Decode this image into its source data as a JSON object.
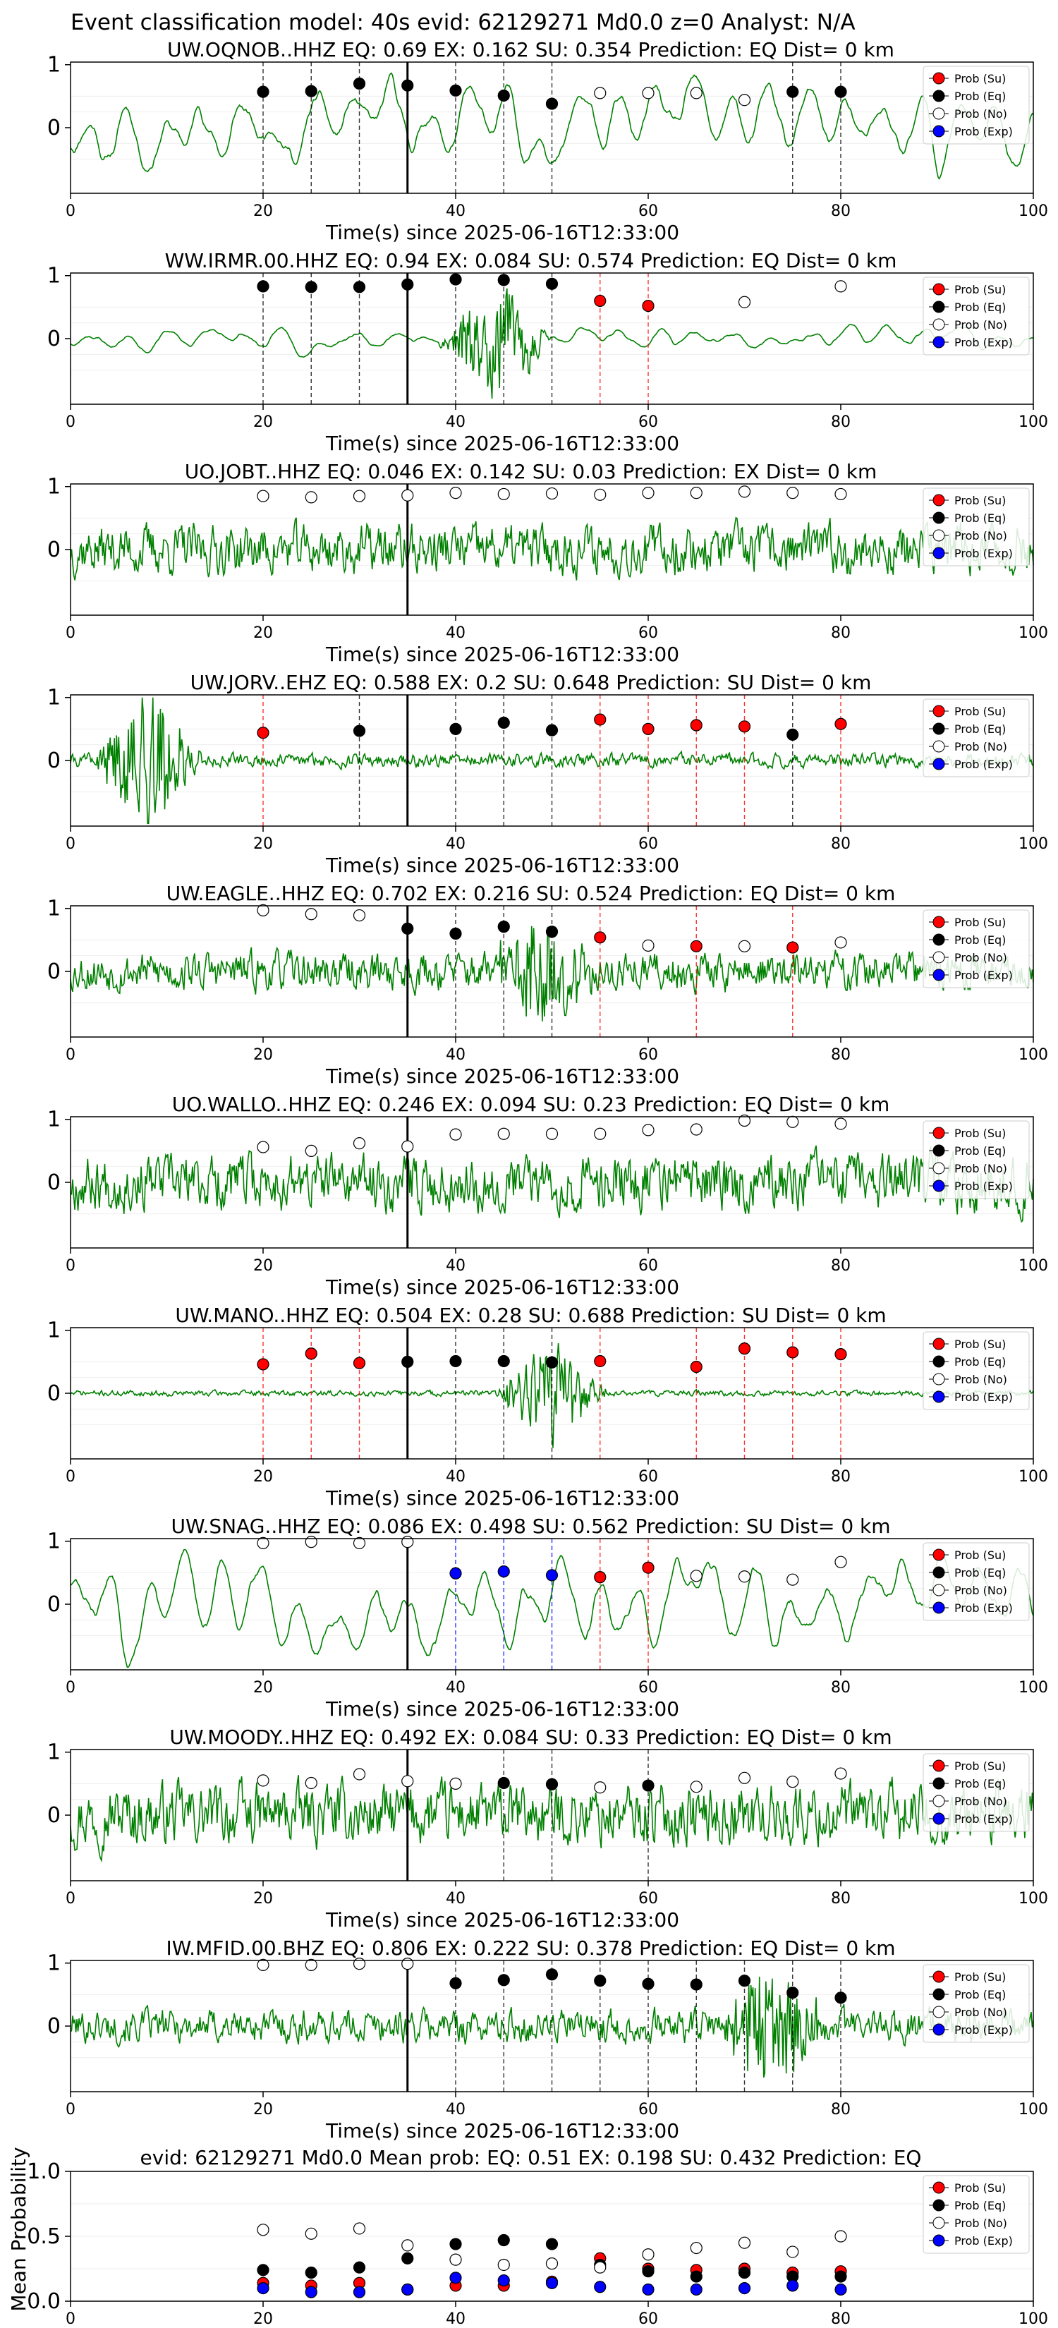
{
  "figure_title": "Event classification model: 40s evid: 62129271 Md0.0 z=0 Analyst: N/A",
  "legend_labels": [
    "Prob (Su)",
    "Prob (Eq)",
    "Prob (No)",
    "Prob (Exp)"
  ],
  "colors": {
    "su": "#ff0000",
    "eq": "#000000",
    "no": "#ffffff",
    "exp": "#0000ff",
    "trace": "#008000"
  },
  "chart_data": [
    {
      "type": "scatter",
      "trace_type": "line",
      "title": "UW.OQNOB..HHZ   EQ: 0.69   EX: 0.162   SU: 0.354   Prediction: EQ    Dist= 0 km",
      "xlabel": "Time(s) since 2025-06-16T12:33:00",
      "xlim": [
        0,
        100
      ],
      "ylim": [
        -1,
        1
      ],
      "x_ticks": [
        "0",
        "20",
        "40",
        "60",
        "80",
        "100"
      ],
      "y_ticks": [
        "1",
        "0"
      ],
      "trace_style": "smooth",
      "trace_amp": 0.6,
      "trace_seed": 11,
      "window_starts": [
        20,
        25,
        30,
        35,
        40,
        45,
        50,
        55,
        60,
        65,
        70,
        75,
        80
      ],
      "window_class": [
        "eq",
        "eq",
        "eq",
        "eq",
        "eq",
        "eq",
        "eq",
        "no",
        "no",
        "no",
        "no",
        "eq",
        "eq"
      ],
      "window_prob": [
        0.57,
        0.58,
        0.7,
        0.67,
        0.59,
        0.51,
        0.38,
        0.55,
        0.55,
        0.55,
        0.44,
        0.57,
        0.57
      ],
      "onset_line": 35
    },
    {
      "type": "scatter",
      "trace_type": "line",
      "title": "WW.IRMR.00.HHZ   EQ: 0.94   EX: 0.084   SU: 0.574   Prediction: EQ    Dist= 0 km",
      "xlabel": "Time(s) since 2025-06-16T12:33:00",
      "xlim": [
        0,
        100
      ],
      "ylim": [
        -1,
        1
      ],
      "x_ticks": [
        "0",
        "20",
        "40",
        "60",
        "80",
        "100"
      ],
      "y_ticks": [
        "1",
        "0"
      ],
      "trace_style": "smooth",
      "trace_amp": 0.18,
      "trace_seed": 23,
      "burst_center": 44,
      "burst_amp": 0.9,
      "window_starts": [
        20,
        25,
        30,
        35,
        40,
        45,
        50,
        55,
        60,
        70,
        80
      ],
      "window_class": [
        "eq",
        "eq",
        "eq",
        "eq",
        "eq",
        "eq",
        "eq",
        "su",
        "su",
        "no",
        "no"
      ],
      "window_prob": [
        0.83,
        0.82,
        0.82,
        0.86,
        0.94,
        0.93,
        0.87,
        0.6,
        0.52,
        0.58,
        0.83
      ],
      "onset_line": 35
    },
    {
      "type": "scatter",
      "trace_type": "line",
      "title": "UO.JOBT..HHZ   EQ: 0.046   EX: 0.142   SU: 0.03   Prediction: EX    Dist= 0 km",
      "xlabel": "Time(s) since 2025-06-16T12:33:00",
      "xlim": [
        0,
        100
      ],
      "ylim": [
        -1,
        1
      ],
      "x_ticks": [
        "0",
        "20",
        "40",
        "60",
        "80",
        "100"
      ],
      "y_ticks": [
        "1",
        "0"
      ],
      "trace_style": "noise",
      "trace_amp": 0.45,
      "trace_seed": 37,
      "window_starts": [
        20,
        25,
        30,
        35,
        40,
        45,
        50,
        55,
        60,
        65,
        70,
        75,
        80
      ],
      "window_class": [
        "no",
        "no",
        "no",
        "no",
        "no",
        "no",
        "no",
        "no",
        "no",
        "no",
        "no",
        "no",
        "no"
      ],
      "window_prob": [
        0.85,
        0.83,
        0.85,
        0.86,
        0.9,
        0.88,
        0.89,
        0.87,
        0.9,
        0.9,
        0.92,
        0.9,
        0.88
      ],
      "onset_line": 35
    },
    {
      "type": "scatter",
      "trace_type": "line",
      "title": "UW.JORV..EHZ   EQ: 0.588   EX: 0.2   SU: 0.648   Prediction: SU    Dist= 0 km",
      "xlabel": "Time(s) since 2025-06-16T12:33:00",
      "xlim": [
        0,
        100
      ],
      "ylim": [
        -1,
        1
      ],
      "x_ticks": [
        "0",
        "20",
        "40",
        "60",
        "80",
        "100"
      ],
      "y_ticks": [
        "1",
        "0"
      ],
      "trace_style": "noise",
      "trace_amp": 0.12,
      "trace_seed": 41,
      "burst_center": 8,
      "burst_amp": 1.1,
      "window_starts": [
        20,
        30,
        40,
        45,
        50,
        55,
        60,
        65,
        70,
        75,
        80
      ],
      "window_class": [
        "su",
        "eq",
        "eq",
        "eq",
        "eq",
        "su",
        "su",
        "su",
        "su",
        "eq",
        "su"
      ],
      "window_prob": [
        0.44,
        0.47,
        0.5,
        0.6,
        0.48,
        0.65,
        0.5,
        0.56,
        0.54,
        0.41,
        0.58
      ],
      "onset_line": 35
    },
    {
      "type": "scatter",
      "trace_type": "line",
      "title": "UW.EAGLE..HHZ   EQ: 0.702   EX: 0.216   SU: 0.524   Prediction: EQ    Dist= 0 km",
      "xlabel": "Time(s) since 2025-06-16T12:33:00",
      "xlim": [
        0,
        100
      ],
      "ylim": [
        -1,
        1
      ],
      "x_ticks": [
        "0",
        "20",
        "40",
        "60",
        "80",
        "100"
      ],
      "y_ticks": [
        "1",
        "0"
      ],
      "trace_style": "noise",
      "trace_amp": 0.35,
      "trace_seed": 53,
      "burst_center": 49,
      "burst_amp": 0.9,
      "window_starts": [
        20,
        25,
        30,
        35,
        40,
        45,
        50,
        55,
        60,
        65,
        70,
        75,
        80
      ],
      "window_class": [
        "no",
        "no",
        "no",
        "eq",
        "eq",
        "eq",
        "eq",
        "su",
        "no",
        "su",
        "no",
        "su",
        "no"
      ],
      "window_prob": [
        0.97,
        0.91,
        0.89,
        0.68,
        0.6,
        0.71,
        0.63,
        0.54,
        0.41,
        0.4,
        0.4,
        0.38,
        0.46
      ],
      "onset_line": 35
    },
    {
      "type": "scatter",
      "trace_type": "line",
      "title": "UO.WALLO..HHZ   EQ: 0.246   EX: 0.094   SU: 0.23   Prediction: EQ    Dist= 0 km",
      "xlabel": "Time(s) since 2025-06-16T12:33:00",
      "xlim": [
        0,
        100
      ],
      "ylim": [
        -1,
        1
      ],
      "x_ticks": [
        "0",
        "20",
        "40",
        "60",
        "80",
        "100"
      ],
      "y_ticks": [
        "1",
        "0"
      ],
      "trace_style": "noise",
      "trace_amp": 0.5,
      "trace_seed": 67,
      "window_starts": [
        20,
        25,
        30,
        35,
        40,
        45,
        50,
        55,
        60,
        65,
        70,
        75,
        80
      ],
      "window_class": [
        "no",
        "no",
        "no",
        "no",
        "no",
        "no",
        "no",
        "no",
        "no",
        "no",
        "no",
        "no",
        "no"
      ],
      "window_prob": [
        0.56,
        0.5,
        0.62,
        0.57,
        0.76,
        0.77,
        0.77,
        0.77,
        0.83,
        0.84,
        0.98,
        0.96,
        0.93
      ],
      "onset_line": 35
    },
    {
      "type": "scatter",
      "trace_type": "line",
      "title": "UW.MANO..HHZ   EQ: 0.504   EX: 0.28   SU: 0.688   Prediction: SU    Dist= 0 km",
      "xlabel": "Time(s) since 2025-06-16T12:33:00",
      "xlim": [
        0,
        100
      ],
      "ylim": [
        -1,
        1
      ],
      "x_ticks": [
        "0",
        "20",
        "40",
        "60",
        "80",
        "100"
      ],
      "y_ticks": [
        "1",
        "0"
      ],
      "trace_style": "noise",
      "trace_amp": 0.05,
      "trace_seed": 71,
      "burst_center": 50,
      "burst_amp": 0.9,
      "window_starts": [
        20,
        25,
        30,
        35,
        40,
        45,
        50,
        55,
        65,
        70,
        75,
        80
      ],
      "window_class": [
        "su",
        "su",
        "su",
        "eq",
        "eq",
        "eq",
        "eq",
        "su",
        "su",
        "su",
        "su",
        "su"
      ],
      "window_prob": [
        0.46,
        0.63,
        0.48,
        0.5,
        0.51,
        0.51,
        0.49,
        0.51,
        0.42,
        0.71,
        0.65,
        0.62
      ],
      "onset_line": 35
    },
    {
      "type": "scatter",
      "trace_type": "line",
      "title": "UW.SNAG..HHZ   EQ: 0.086   EX: 0.498   SU: 0.562   Prediction: SU    Dist= 0 km",
      "xlabel": "Time(s) since 2025-06-16T12:33:00",
      "xlim": [
        0,
        100
      ],
      "ylim": [
        -1,
        1
      ],
      "x_ticks": [
        "0",
        "20",
        "40",
        "60",
        "80",
        "100"
      ],
      "y_ticks": [
        "1",
        "0"
      ],
      "trace_style": "smooth",
      "trace_amp": 0.65,
      "trace_seed": 83,
      "window_starts": [
        20,
        25,
        30,
        35,
        40,
        45,
        50,
        55,
        60,
        65,
        70,
        75,
        80
      ],
      "window_class": [
        "no",
        "no",
        "no",
        "no",
        "exp",
        "exp",
        "exp",
        "su",
        "su",
        "no",
        "no",
        "no",
        "no"
      ],
      "window_prob": [
        0.97,
        0.99,
        0.97,
        0.99,
        0.49,
        0.52,
        0.46,
        0.43,
        0.58,
        0.45,
        0.44,
        0.39,
        0.67
      ],
      "onset_line": 35
    },
    {
      "type": "scatter",
      "trace_type": "line",
      "title": "UW.MOODY..HHZ   EQ: 0.492   EX: 0.084   SU: 0.33   Prediction: EQ    Dist= 0 km",
      "xlabel": "Time(s) since 2025-06-16T12:33:00",
      "xlim": [
        0,
        100
      ],
      "ylim": [
        -1,
        1
      ],
      "x_ticks": [
        "0",
        "20",
        "40",
        "60",
        "80",
        "100"
      ],
      "y_ticks": [
        "1",
        "0"
      ],
      "trace_style": "noise",
      "trace_amp": 0.55,
      "trace_seed": 97,
      "window_starts": [
        20,
        25,
        30,
        35,
        40,
        45,
        50,
        55,
        60,
        65,
        70,
        75,
        80
      ],
      "window_class": [
        "no",
        "no",
        "no",
        "no",
        "no",
        "eq",
        "eq",
        "no",
        "eq",
        "no",
        "no",
        "no",
        "no"
      ],
      "window_prob": [
        0.55,
        0.51,
        0.65,
        0.54,
        0.5,
        0.51,
        0.49,
        0.44,
        0.47,
        0.45,
        0.59,
        0.53,
        0.66
      ],
      "onset_line": 35
    },
    {
      "type": "scatter",
      "trace_type": "line",
      "title": "IW.MFID.00.BHZ   EQ: 0.806   EX: 0.222   SU: 0.378   Prediction: EQ    Dist= 0 km",
      "xlabel": "Time(s) since 2025-06-16T12:33:00",
      "xlim": [
        0,
        100
      ],
      "ylim": [
        -1,
        1
      ],
      "x_ticks": [
        "0",
        "20",
        "40",
        "60",
        "80",
        "100"
      ],
      "y_ticks": [
        "1",
        "0"
      ],
      "trace_style": "noise",
      "trace_amp": 0.3,
      "trace_seed": 101,
      "burst_center": 73,
      "burst_amp": 1.0,
      "window_starts": [
        20,
        25,
        30,
        35,
        40,
        45,
        50,
        55,
        60,
        65,
        70,
        75,
        80
      ],
      "window_class": [
        "no",
        "no",
        "no",
        "no",
        "eq",
        "eq",
        "eq",
        "eq",
        "eq",
        "eq",
        "eq",
        "eq",
        "eq"
      ],
      "window_prob": [
        0.97,
        0.97,
        0.99,
        0.99,
        0.68,
        0.73,
        0.82,
        0.72,
        0.67,
        0.66,
        0.72,
        0.53,
        0.45
      ],
      "onset_line": 35
    },
    {
      "type": "scatter",
      "title": "evid: 62129271  Md0.0   Mean prob:   EQ: 0.51  EX: 0.198  SU: 0.432   Prediction: EQ",
      "xlabel": "",
      "ylabel": "Mean Probability",
      "xlim": [
        0,
        100
      ],
      "ylim": [
        0,
        1
      ],
      "x_ticks": [
        "0",
        "20",
        "40",
        "60",
        "80",
        "100"
      ],
      "y_ticks": [
        "1.0",
        "0.5",
        "0.0"
      ],
      "x": [
        20,
        25,
        30,
        35,
        40,
        45,
        50,
        55,
        60,
        65,
        70,
        75,
        80
      ],
      "series": [
        {
          "name": "Prob (Su)",
          "key": "su",
          "values": [
            0.14,
            0.12,
            0.14,
            0.09,
            0.12,
            0.12,
            0.15,
            0.33,
            0.25,
            0.24,
            0.25,
            0.22,
            0.23
          ]
        },
        {
          "name": "Prob (Eq)",
          "key": "eq",
          "values": [
            0.24,
            0.22,
            0.26,
            0.33,
            0.44,
            0.47,
            0.44,
            0.28,
            0.23,
            0.19,
            0.22,
            0.19,
            0.19
          ]
        },
        {
          "name": "Prob (No)",
          "key": "no",
          "values": [
            0.55,
            0.52,
            0.56,
            0.43,
            0.32,
            0.28,
            0.29,
            0.26,
            0.36,
            0.41,
            0.45,
            0.38,
            0.5
          ]
        },
        {
          "name": "Prob (Exp)",
          "key": "exp",
          "values": [
            0.1,
            0.07,
            0.07,
            0.09,
            0.18,
            0.16,
            0.14,
            0.11,
            0.09,
            0.09,
            0.1,
            0.12,
            0.09
          ]
        }
      ]
    }
  ]
}
